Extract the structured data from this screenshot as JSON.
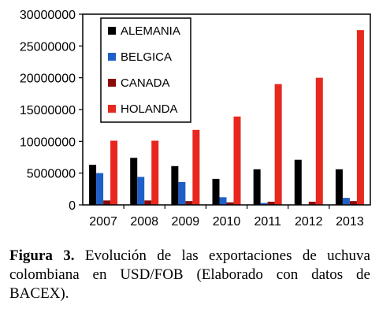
{
  "chart_data": {
    "type": "bar",
    "title": "",
    "xlabel": "",
    "ylabel": "",
    "categories": [
      "2007",
      "2008",
      "2009",
      "2010",
      "2011",
      "2012",
      "2013"
    ],
    "ylim": [
      0,
      30000000
    ],
    "yticks": [
      "0",
      "5000000",
      "10000000",
      "15000000",
      "20000000",
      "25000000",
      "30000000"
    ],
    "grid": false,
    "legend_position": "top-left",
    "series": [
      {
        "name": "ALEMANIA",
        "color": "#000000",
        "values": [
          6300000,
          7400000,
          6100000,
          4100000,
          5600000,
          7100000,
          5600000
        ]
      },
      {
        "name": "BELGICA",
        "color": "#1f5fc8",
        "values": [
          5000000,
          4400000,
          3600000,
          1200000,
          300000,
          0,
          1100000
        ]
      },
      {
        "name": "CANADA",
        "color": "#8b0a0a",
        "values": [
          700000,
          700000,
          600000,
          400000,
          500000,
          500000,
          600000
        ]
      },
      {
        "name": "HOLANDA",
        "color": "#e8281e",
        "values": [
          10100000,
          10100000,
          11800000,
          13900000,
          19000000,
          20000000,
          27500000
        ]
      }
    ]
  },
  "caption": {
    "label": "Figura 3.",
    "text": " Evolución de las exportaciones de uchuva colombiana en USD/FOB (Elaborado con datos de BACEX)."
  }
}
